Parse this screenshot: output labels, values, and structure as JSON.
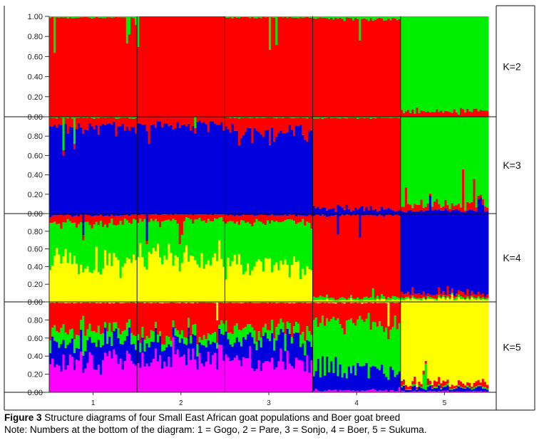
{
  "caption": {
    "label": "Figure 3",
    "text": " Structure diagrams of four Small East African goat populations and Boer goat breed",
    "note": "Note: Numbers at the bottom of the diagram: 1 = Gogo, 2 = Pare, 3 = Sonjo, 4 = Boer, 5 = Sukuma."
  },
  "colors": {
    "red": "#ff0000",
    "green": "#00ee00",
    "blue": "#0000dd",
    "yellow": "#ffff00",
    "magenta": "#ff00ff"
  },
  "chart_data": {
    "type": "bar",
    "stacked": true,
    "grid": false,
    "ylim": [
      0,
      1
    ],
    "yticks": [
      "0.00",
      "0.20",
      "0.40",
      "0.60",
      "0.80",
      "1.00"
    ],
    "population_labels": [
      "1",
      "2",
      "3",
      "4",
      "5"
    ],
    "individuals_per_population": 40,
    "panels": [
      {
        "label": "K=2",
        "clusters": [
          "red",
          "green"
        ],
        "populations": [
          {
            "label": "1",
            "mean": {
              "red": 0.99,
              "green": 0.01
            }
          },
          {
            "label": "2",
            "mean": {
              "red": 1.0,
              "green": 0.0
            }
          },
          {
            "label": "3",
            "mean": {
              "red": 0.99,
              "green": 0.01
            }
          },
          {
            "label": "4",
            "mean": {
              "red": 0.98,
              "green": 0.02
            }
          },
          {
            "label": "5",
            "mean": {
              "red": 0.05,
              "green": 0.95
            }
          }
        ]
      },
      {
        "label": "K=3",
        "clusters": [
          "blue",
          "red",
          "green"
        ],
        "populations": [
          {
            "label": "1",
            "mean": {
              "blue": 0.9,
              "red": 0.09,
              "green": 0.01
            }
          },
          {
            "label": "2",
            "mean": {
              "blue": 0.92,
              "red": 0.08,
              "green": 0.0
            }
          },
          {
            "label": "3",
            "mean": {
              "blue": 0.85,
              "red": 0.14,
              "green": 0.01
            }
          },
          {
            "label": "4",
            "mean": {
              "blue": 0.04,
              "red": 0.95,
              "green": 0.01
            }
          },
          {
            "label": "5",
            "mean": {
              "blue": 0.03,
              "red": 0.05,
              "green": 0.92
            }
          }
        ]
      },
      {
        "label": "K=4",
        "clusters": [
          "yellow",
          "green",
          "red",
          "blue"
        ],
        "populations": [
          {
            "label": "1",
            "mean": {
              "yellow": 0.45,
              "green": 0.45,
              "red": 0.08,
              "blue": 0.02
            }
          },
          {
            "label": "2",
            "mean": {
              "yellow": 0.55,
              "green": 0.38,
              "red": 0.06,
              "blue": 0.01
            }
          },
          {
            "label": "3",
            "mean": {
              "yellow": 0.42,
              "green": 0.48,
              "red": 0.08,
              "blue": 0.02
            }
          },
          {
            "label": "4",
            "mean": {
              "yellow": 0.02,
              "green": 0.03,
              "red": 0.93,
              "blue": 0.02
            }
          },
          {
            "label": "5",
            "mean": {
              "yellow": 0.03,
              "green": 0.02,
              "red": 0.05,
              "blue": 0.9
            }
          }
        ]
      },
      {
        "label": "K=5",
        "clusters": [
          "magenta",
          "blue",
          "green",
          "red",
          "yellow"
        ],
        "populations": [
          {
            "label": "1",
            "mean": {
              "magenta": 0.35,
              "blue": 0.22,
              "green": 0.12,
              "red": 0.3,
              "yellow": 0.01
            }
          },
          {
            "label": "2",
            "mean": {
              "magenta": 0.35,
              "blue": 0.2,
              "green": 0.1,
              "red": 0.34,
              "yellow": 0.01
            }
          },
          {
            "label": "3",
            "mean": {
              "magenta": 0.33,
              "blue": 0.24,
              "green": 0.12,
              "red": 0.3,
              "yellow": 0.01
            }
          },
          {
            "label": "4",
            "mean": {
              "magenta": 0.02,
              "blue": 0.22,
              "green": 0.55,
              "red": 0.2,
              "yellow": 0.01
            }
          },
          {
            "label": "5",
            "mean": {
              "magenta": 0.01,
              "blue": 0.03,
              "green": 0.01,
              "red": 0.04,
              "yellow": 0.91
            }
          }
        ]
      }
    ]
  }
}
